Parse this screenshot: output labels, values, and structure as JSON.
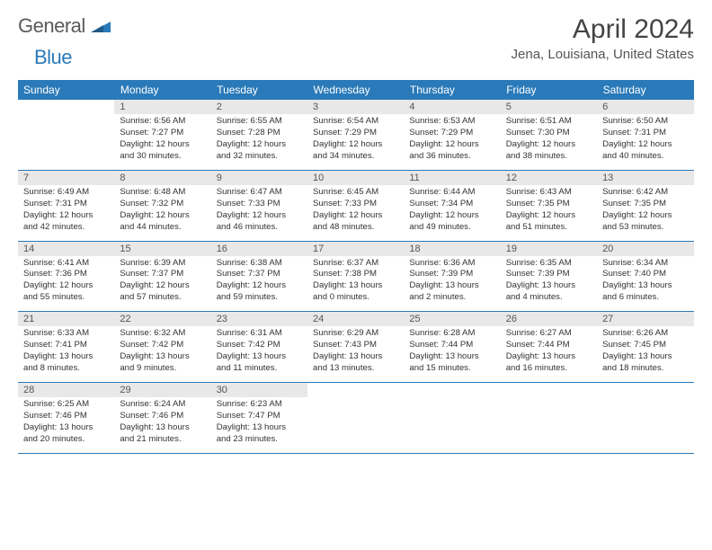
{
  "logo": {
    "text1": "General",
    "text2": "Blue"
  },
  "title": "April 2024",
  "location": "Jena, Louisiana, United States",
  "colors": {
    "header_bg": "#2a7ab9",
    "header_text": "#ffffff",
    "daynum_bg": "#e8e8e8",
    "daynum_text": "#555555",
    "body_text": "#333333",
    "border": "#2a7ab9"
  },
  "weekdays": [
    "Sunday",
    "Monday",
    "Tuesday",
    "Wednesday",
    "Thursday",
    "Friday",
    "Saturday"
  ],
  "weeks": [
    [
      {
        "day": "",
        "sunrise": "",
        "sunset": "",
        "daylight1": "",
        "daylight2": ""
      },
      {
        "day": "1",
        "sunrise": "Sunrise: 6:56 AM",
        "sunset": "Sunset: 7:27 PM",
        "daylight1": "Daylight: 12 hours",
        "daylight2": "and 30 minutes."
      },
      {
        "day": "2",
        "sunrise": "Sunrise: 6:55 AM",
        "sunset": "Sunset: 7:28 PM",
        "daylight1": "Daylight: 12 hours",
        "daylight2": "and 32 minutes."
      },
      {
        "day": "3",
        "sunrise": "Sunrise: 6:54 AM",
        "sunset": "Sunset: 7:29 PM",
        "daylight1": "Daylight: 12 hours",
        "daylight2": "and 34 minutes."
      },
      {
        "day": "4",
        "sunrise": "Sunrise: 6:53 AM",
        "sunset": "Sunset: 7:29 PM",
        "daylight1": "Daylight: 12 hours",
        "daylight2": "and 36 minutes."
      },
      {
        "day": "5",
        "sunrise": "Sunrise: 6:51 AM",
        "sunset": "Sunset: 7:30 PM",
        "daylight1": "Daylight: 12 hours",
        "daylight2": "and 38 minutes."
      },
      {
        "day": "6",
        "sunrise": "Sunrise: 6:50 AM",
        "sunset": "Sunset: 7:31 PM",
        "daylight1": "Daylight: 12 hours",
        "daylight2": "and 40 minutes."
      }
    ],
    [
      {
        "day": "7",
        "sunrise": "Sunrise: 6:49 AM",
        "sunset": "Sunset: 7:31 PM",
        "daylight1": "Daylight: 12 hours",
        "daylight2": "and 42 minutes."
      },
      {
        "day": "8",
        "sunrise": "Sunrise: 6:48 AM",
        "sunset": "Sunset: 7:32 PM",
        "daylight1": "Daylight: 12 hours",
        "daylight2": "and 44 minutes."
      },
      {
        "day": "9",
        "sunrise": "Sunrise: 6:47 AM",
        "sunset": "Sunset: 7:33 PM",
        "daylight1": "Daylight: 12 hours",
        "daylight2": "and 46 minutes."
      },
      {
        "day": "10",
        "sunrise": "Sunrise: 6:45 AM",
        "sunset": "Sunset: 7:33 PM",
        "daylight1": "Daylight: 12 hours",
        "daylight2": "and 48 minutes."
      },
      {
        "day": "11",
        "sunrise": "Sunrise: 6:44 AM",
        "sunset": "Sunset: 7:34 PM",
        "daylight1": "Daylight: 12 hours",
        "daylight2": "and 49 minutes."
      },
      {
        "day": "12",
        "sunrise": "Sunrise: 6:43 AM",
        "sunset": "Sunset: 7:35 PM",
        "daylight1": "Daylight: 12 hours",
        "daylight2": "and 51 minutes."
      },
      {
        "day": "13",
        "sunrise": "Sunrise: 6:42 AM",
        "sunset": "Sunset: 7:35 PM",
        "daylight1": "Daylight: 12 hours",
        "daylight2": "and 53 minutes."
      }
    ],
    [
      {
        "day": "14",
        "sunrise": "Sunrise: 6:41 AM",
        "sunset": "Sunset: 7:36 PM",
        "daylight1": "Daylight: 12 hours",
        "daylight2": "and 55 minutes."
      },
      {
        "day": "15",
        "sunrise": "Sunrise: 6:39 AM",
        "sunset": "Sunset: 7:37 PM",
        "daylight1": "Daylight: 12 hours",
        "daylight2": "and 57 minutes."
      },
      {
        "day": "16",
        "sunrise": "Sunrise: 6:38 AM",
        "sunset": "Sunset: 7:37 PM",
        "daylight1": "Daylight: 12 hours",
        "daylight2": "and 59 minutes."
      },
      {
        "day": "17",
        "sunrise": "Sunrise: 6:37 AM",
        "sunset": "Sunset: 7:38 PM",
        "daylight1": "Daylight: 13 hours",
        "daylight2": "and 0 minutes."
      },
      {
        "day": "18",
        "sunrise": "Sunrise: 6:36 AM",
        "sunset": "Sunset: 7:39 PM",
        "daylight1": "Daylight: 13 hours",
        "daylight2": "and 2 minutes."
      },
      {
        "day": "19",
        "sunrise": "Sunrise: 6:35 AM",
        "sunset": "Sunset: 7:39 PM",
        "daylight1": "Daylight: 13 hours",
        "daylight2": "and 4 minutes."
      },
      {
        "day": "20",
        "sunrise": "Sunrise: 6:34 AM",
        "sunset": "Sunset: 7:40 PM",
        "daylight1": "Daylight: 13 hours",
        "daylight2": "and 6 minutes."
      }
    ],
    [
      {
        "day": "21",
        "sunrise": "Sunrise: 6:33 AM",
        "sunset": "Sunset: 7:41 PM",
        "daylight1": "Daylight: 13 hours",
        "daylight2": "and 8 minutes."
      },
      {
        "day": "22",
        "sunrise": "Sunrise: 6:32 AM",
        "sunset": "Sunset: 7:42 PM",
        "daylight1": "Daylight: 13 hours",
        "daylight2": "and 9 minutes."
      },
      {
        "day": "23",
        "sunrise": "Sunrise: 6:31 AM",
        "sunset": "Sunset: 7:42 PM",
        "daylight1": "Daylight: 13 hours",
        "daylight2": "and 11 minutes."
      },
      {
        "day": "24",
        "sunrise": "Sunrise: 6:29 AM",
        "sunset": "Sunset: 7:43 PM",
        "daylight1": "Daylight: 13 hours",
        "daylight2": "and 13 minutes."
      },
      {
        "day": "25",
        "sunrise": "Sunrise: 6:28 AM",
        "sunset": "Sunset: 7:44 PM",
        "daylight1": "Daylight: 13 hours",
        "daylight2": "and 15 minutes."
      },
      {
        "day": "26",
        "sunrise": "Sunrise: 6:27 AM",
        "sunset": "Sunset: 7:44 PM",
        "daylight1": "Daylight: 13 hours",
        "daylight2": "and 16 minutes."
      },
      {
        "day": "27",
        "sunrise": "Sunrise: 6:26 AM",
        "sunset": "Sunset: 7:45 PM",
        "daylight1": "Daylight: 13 hours",
        "daylight2": "and 18 minutes."
      }
    ],
    [
      {
        "day": "28",
        "sunrise": "Sunrise: 6:25 AM",
        "sunset": "Sunset: 7:46 PM",
        "daylight1": "Daylight: 13 hours",
        "daylight2": "and 20 minutes."
      },
      {
        "day": "29",
        "sunrise": "Sunrise: 6:24 AM",
        "sunset": "Sunset: 7:46 PM",
        "daylight1": "Daylight: 13 hours",
        "daylight2": "and 21 minutes."
      },
      {
        "day": "30",
        "sunrise": "Sunrise: 6:23 AM",
        "sunset": "Sunset: 7:47 PM",
        "daylight1": "Daylight: 13 hours",
        "daylight2": "and 23 minutes."
      },
      {
        "day": "",
        "sunrise": "",
        "sunset": "",
        "daylight1": "",
        "daylight2": ""
      },
      {
        "day": "",
        "sunrise": "",
        "sunset": "",
        "daylight1": "",
        "daylight2": ""
      },
      {
        "day": "",
        "sunrise": "",
        "sunset": "",
        "daylight1": "",
        "daylight2": ""
      },
      {
        "day": "",
        "sunrise": "",
        "sunset": "",
        "daylight1": "",
        "daylight2": ""
      }
    ]
  ]
}
